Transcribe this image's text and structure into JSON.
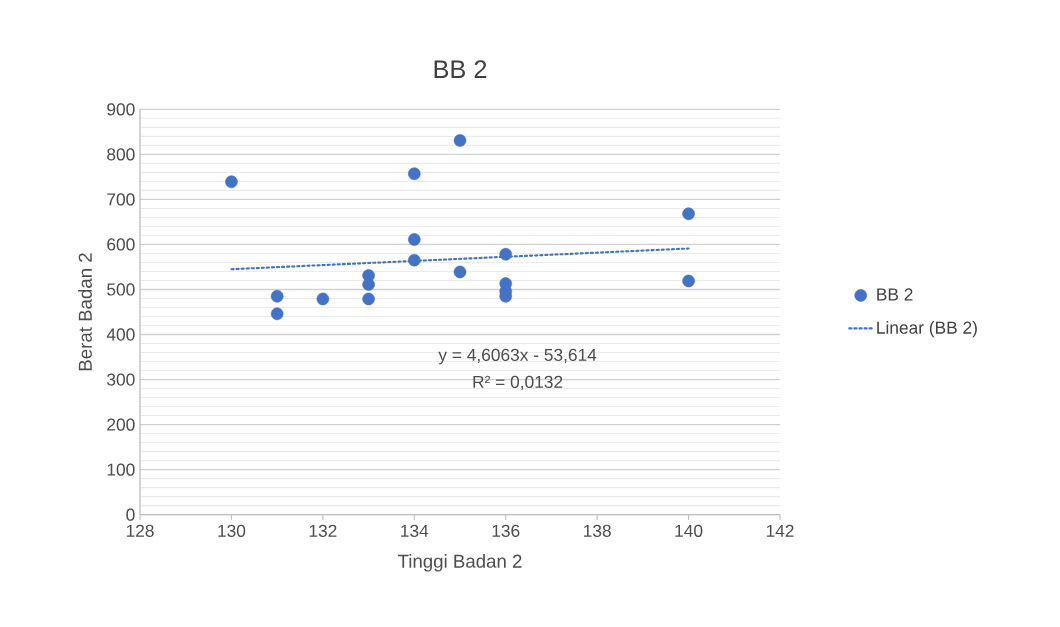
{
  "chart_data": {
    "type": "scatter",
    "title": "BB 2",
    "xlabel": "Tinggi Badan 2",
    "ylabel": "Berat Badan 2",
    "x": [
      130,
      131,
      131,
      132,
      133,
      133,
      133,
      134,
      134,
      134,
      135,
      135,
      136,
      136,
      136,
      136,
      140,
      140
    ],
    "series": [
      {
        "name": "BB 2",
        "color": "#4472c4",
        "marker": "circle",
        "values": [
          739,
          485,
          446,
          479,
          531,
          511,
          479,
          757,
          611,
          565,
          831,
          539,
          578,
          513,
          496,
          485,
          668,
          519
        ]
      },
      {
        "name": "Linear (BB 2)",
        "type": "line",
        "color": "#4472c4",
        "line_style": "dotted",
        "marker": "none",
        "x": [
          130,
          140
        ],
        "values": [
          545,
          591
        ]
      }
    ],
    "xlim": [
      128,
      142
    ],
    "xticks": [
      128,
      130,
      132,
      134,
      136,
      138,
      140,
      142
    ],
    "ylim": [
      0,
      900
    ],
    "yticks": [
      0,
      100,
      200,
      300,
      400,
      500,
      600,
      700,
      800,
      900
    ],
    "grid": "y",
    "legend": "right",
    "annotations": [
      "y = 4,6063x - 53,614",
      "R² = 0,0132"
    ]
  }
}
